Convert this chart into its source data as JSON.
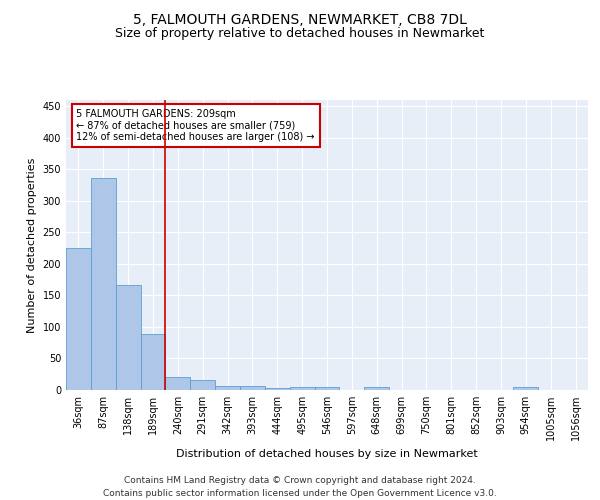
{
  "title": "5, FALMOUTH GARDENS, NEWMARKET, CB8 7DL",
  "subtitle": "Size of property relative to detached houses in Newmarket",
  "xlabel": "Distribution of detached houses by size in Newmarket",
  "ylabel": "Number of detached properties",
  "bar_labels": [
    "36sqm",
    "87sqm",
    "138sqm",
    "189sqm",
    "240sqm",
    "291sqm",
    "342sqm",
    "393sqm",
    "444sqm",
    "495sqm",
    "546sqm",
    "597sqm",
    "648sqm",
    "699sqm",
    "750sqm",
    "801sqm",
    "852sqm",
    "903sqm",
    "954sqm",
    "1005sqm",
    "1056sqm"
  ],
  "bar_values": [
    226,
    337,
    166,
    89,
    21,
    16,
    7,
    7,
    3,
    5,
    5,
    0,
    5,
    0,
    0,
    0,
    0,
    0,
    4,
    0,
    0
  ],
  "bar_color": "#aec6e8",
  "bar_edge_color": "#5a9fd4",
  "vline_x": 3.5,
  "vline_color": "#cc0000",
  "annotation_line1": "5 FALMOUTH GARDENS: 209sqm",
  "annotation_line2": "← 87% of detached houses are smaller (759)",
  "annotation_line3": "12% of semi-detached houses are larger (108) →",
  "annotation_box_color": "#ffffff",
  "annotation_box_edge": "#cc0000",
  "ylim": [
    0,
    460
  ],
  "yticks": [
    0,
    50,
    100,
    150,
    200,
    250,
    300,
    350,
    400,
    450
  ],
  "bg_color": "#e8eef8",
  "grid_color": "#ffffff",
  "footer": "Contains HM Land Registry data © Crown copyright and database right 2024.\nContains public sector information licensed under the Open Government Licence v3.0.",
  "title_fontsize": 10,
  "subtitle_fontsize": 9,
  "label_fontsize": 8,
  "tick_fontsize": 7,
  "footer_fontsize": 6.5
}
